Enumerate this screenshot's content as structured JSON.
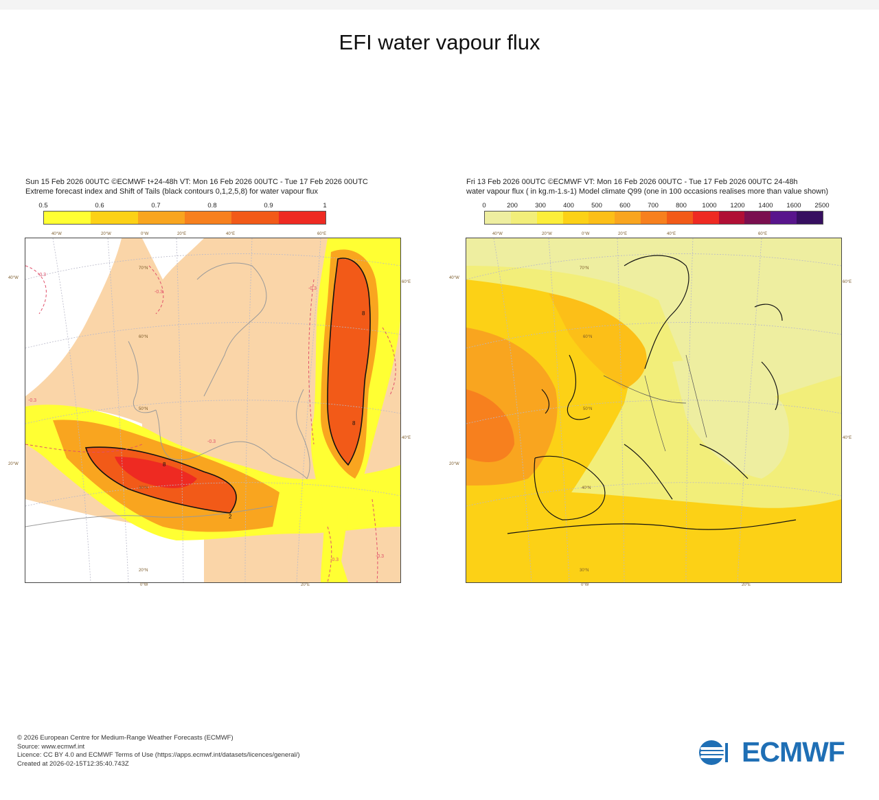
{
  "page": {
    "title": "EFI water vapour flux"
  },
  "left_panel": {
    "header_line1": "Sun 15 Feb 2026 00UTC ©ECMWF t+24-48h  VT: Mon 16 Feb 2026 00UTC - Tue 17 Feb 2026 00UTC",
    "header_line2": "Extreme forecast index and Shift of Tails (black contours 0,1,2,5,8) for water vapour flux",
    "colorbar": {
      "ticks": [
        "0.5",
        "0.6",
        "0.7",
        "0.8",
        "0.9",
        "1"
      ],
      "colors": [
        "#ffff33",
        "#fcd116",
        "#f9a51f",
        "#f7801e",
        "#f25a18"
      ],
      "last_color": "#ee2a22"
    },
    "lon_labels_top": [
      "40°W",
      "20°W",
      "0°W",
      "20°E",
      "40°E",
      "60°E"
    ],
    "lon_labels_bottom": [
      "0°W",
      "20°E"
    ],
    "lat_labels_left": [
      "40°W",
      "20°W"
    ],
    "lat_labels_right": [
      "60°E",
      "40°E"
    ],
    "lat_labels_inner": [
      "70°N",
      "60°N",
      "50°N",
      "30°N",
      "20°N"
    ],
    "contour_labels": [
      "-0.3",
      "-0.3",
      "-0.3",
      "-0.3",
      "-0.3",
      "-0.3",
      "-0.3"
    ],
    "sot_labels": [
      "8",
      "8",
      "8",
      "2"
    ]
  },
  "right_panel": {
    "header_line1": "Fri 13 Feb 2026 00UTC ©ECMWF VT: Mon 16 Feb 2026 00UTC - Tue 17 Feb 2026 00UTC  24-48h",
    "header_line2": "water vapour flux ( in kg.m-1.s-1)  Model climate Q99 (one in 100 occasions realises more than value shown)",
    "colorbar": {
      "ticks": [
        "0",
        "200",
        "300",
        "400",
        "500",
        "600",
        "700",
        "800",
        "1000",
        "1200",
        "1400",
        "1600",
        "2500"
      ],
      "colors": [
        "#eeeea0",
        "#f2ee7a",
        "#fcee3a",
        "#fcd116",
        "#fcbf18",
        "#f9a51f",
        "#f7801e",
        "#f25a18",
        "#ee2a22",
        "#b00f35",
        "#7a0f4f",
        "#58158c",
        "#360f60"
      ]
    },
    "lon_labels_top": [
      "40°W",
      "20°W",
      "0°W",
      "20°E",
      "40°E",
      "60°E"
    ],
    "lon_labels_bottom": [
      "0°W",
      "20°E"
    ],
    "lat_labels_left": [
      "40°W",
      "20°W"
    ],
    "lat_labels_right": [
      "60°E",
      "40°E"
    ],
    "lat_labels_inner": [
      "70°N",
      "60°N",
      "50°N",
      "40°N",
      "30°N"
    ]
  },
  "footer": {
    "line1": "© 2026 European Centre for Medium-Range Weather Forecasts (ECMWF)",
    "line2": "Source: www.ecmwf.int",
    "line3": "Licence: CC BY 4.0 and ECMWF Terms of Use (https://apps.ecmwf.int/datasets/licences/general/)",
    "line4": "Created at 2026-02-15T12:35:40.743Z"
  },
  "logo": {
    "text": "ECMWF",
    "brand_color": "#1f6fb5"
  }
}
